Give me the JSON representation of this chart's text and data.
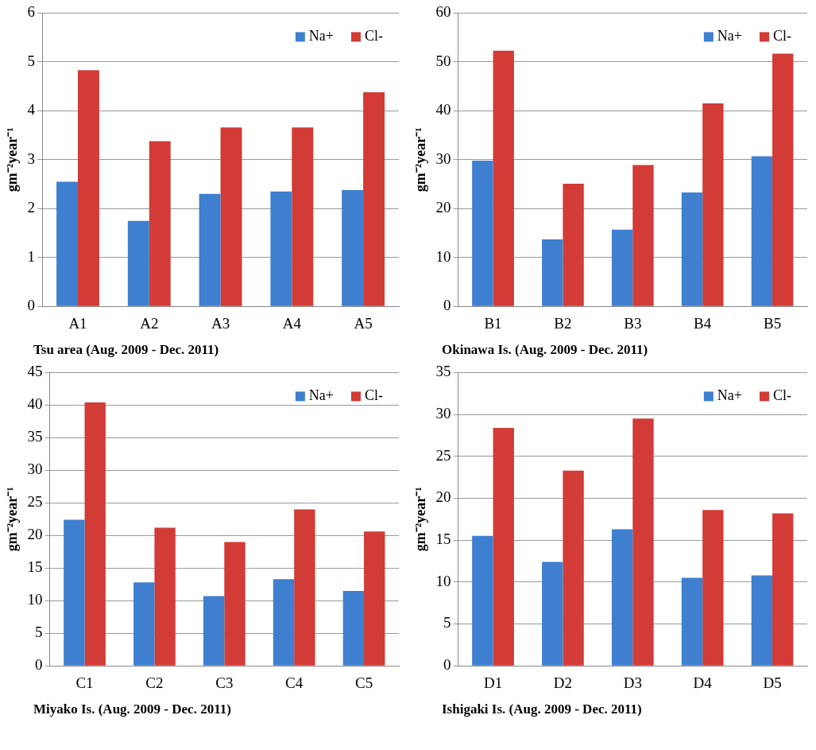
{
  "chart_data": [
    {
      "type": "bar",
      "title": "Tsu area (Aug. 2009 -  Dec. 2011)",
      "ylabel": "gm⁻²year⁻¹",
      "categories": [
        "A1",
        "A2",
        "A3",
        "A4",
        "A5"
      ],
      "series": [
        {
          "name": "Na+",
          "color": "#3f7fcf",
          "values": [
            2.55,
            1.75,
            2.3,
            2.35,
            2.38
          ]
        },
        {
          "name": "Cl-",
          "color": "#d23b36",
          "values": [
            4.83,
            3.38,
            3.66,
            3.66,
            4.38
          ]
        }
      ],
      "ylim": [
        0,
        6
      ],
      "yticks": [
        0,
        1,
        2,
        3,
        4,
        5,
        6
      ],
      "grid": "y",
      "legend": "top right"
    },
    {
      "type": "bar",
      "title": "Okinawa Is. (Aug. 2009 -  Dec. 2011)",
      "ylabel": "gm⁻²year⁻¹",
      "categories": [
        "B1",
        "B2",
        "B3",
        "B4",
        "B5"
      ],
      "series": [
        {
          "name": "Na+",
          "color": "#3f7fcf",
          "values": [
            29.8,
            13.7,
            15.7,
            23.3,
            30.7
          ]
        },
        {
          "name": "Cl-",
          "color": "#d23b36",
          "values": [
            52.3,
            25.1,
            28.9,
            41.5,
            51.7
          ]
        }
      ],
      "ylim": [
        0,
        60
      ],
      "yticks": [
        0,
        10,
        20,
        30,
        40,
        50,
        60
      ],
      "grid": "y",
      "legend": "top right"
    },
    {
      "type": "bar",
      "title": "Miyako Is. (Aug. 2009 -  Dec. 2011)",
      "ylabel": "gm⁻²year⁻¹",
      "categories": [
        "C1",
        "C2",
        "C3",
        "C4",
        "C5"
      ],
      "series": [
        {
          "name": "Na+",
          "color": "#3f7fcf",
          "values": [
            22.4,
            12.8,
            10.7,
            13.3,
            11.5
          ]
        },
        {
          "name": "Cl-",
          "color": "#d23b36",
          "values": [
            40.4,
            21.2,
            19.0,
            24.0,
            20.6
          ]
        }
      ],
      "ylim": [
        0,
        45
      ],
      "yticks": [
        0,
        5,
        10,
        15,
        20,
        25,
        30,
        35,
        40,
        45
      ],
      "grid": "y",
      "legend": "top right"
    },
    {
      "type": "bar",
      "title": "Ishigaki Is. (Aug. 2009 - Dec. 2011)",
      "ylabel": "gm⁻²year⁻¹",
      "categories": [
        "D1",
        "D2",
        "D3",
        "D4",
        "D5"
      ],
      "series": [
        {
          "name": "Na+",
          "color": "#3f7fcf",
          "values": [
            15.5,
            12.4,
            16.3,
            10.5,
            10.8
          ]
        },
        {
          "name": "Cl-",
          "color": "#d23b36",
          "values": [
            28.4,
            23.3,
            29.5,
            18.6,
            18.2
          ]
        }
      ],
      "ylim": [
        0,
        35
      ],
      "yticks": [
        0,
        5,
        10,
        15,
        20,
        25,
        30,
        35
      ],
      "grid": "y",
      "legend": "top right"
    }
  ]
}
